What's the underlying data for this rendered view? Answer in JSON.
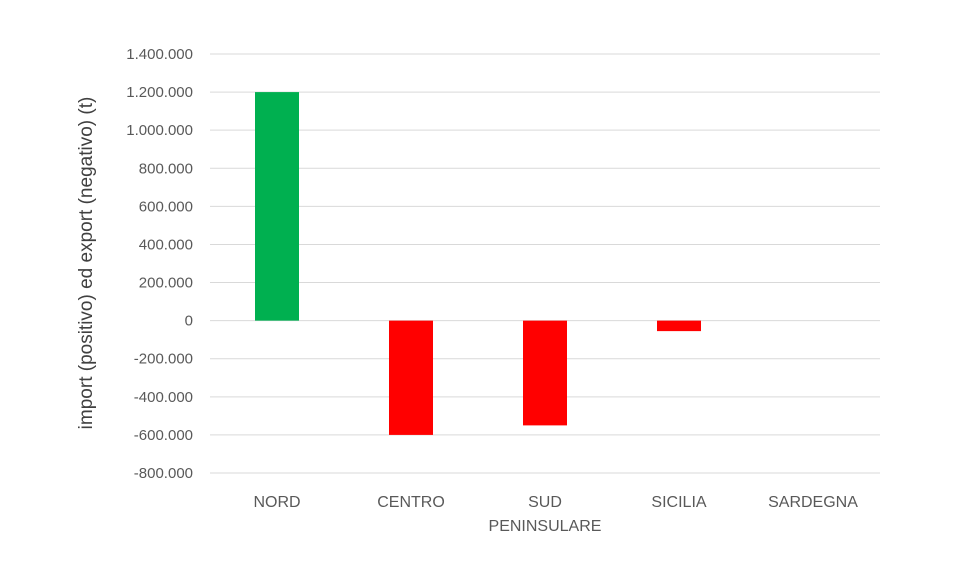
{
  "chart_data": {
    "type": "bar",
    "categories": [
      "NORD",
      "CENTRO",
      "SUD|PENINSULARE",
      "SICILIA",
      "SARDEGNA"
    ],
    "values": [
      1200000,
      -600000,
      -550000,
      -55000,
      0
    ],
    "title": "",
    "xlabel": "",
    "ylabel": "import (positivo) ed export (negativo) (t)",
    "ylim": [
      -800000,
      1400000
    ],
    "ytick_labels": [
      "1.400.000",
      "1.200.000",
      "1.000.000",
      "800.000",
      "600.000",
      "400.000",
      "200.000",
      "0",
      "-200.000",
      "-400.000",
      "-600.000",
      "-800.000"
    ],
    "grid": true,
    "legend": "none",
    "colors": {
      "positive": "#00B050",
      "negative": "#FF0000",
      "grid": "#D9D9D9",
      "text": "#595959"
    }
  }
}
